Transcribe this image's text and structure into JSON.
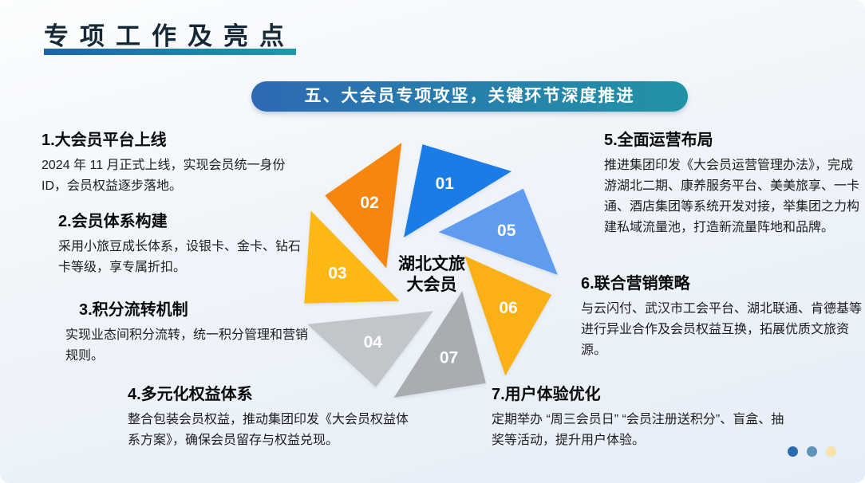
{
  "header": {
    "title": "专项工作及亮点",
    "banner": "五、大会员专项攻坚，关键环节深度推进"
  },
  "items": [
    {
      "heading": "1.大会员平台上线",
      "body": "2024 年 11 月正式上线，实现会员统一身份 ID，会员权益逐步落地。"
    },
    {
      "heading": "2.会员体系构建",
      "body": "采用小旅豆成长体系，设银卡、金卡、钻石卡等级，享专属折扣。"
    },
    {
      "heading": "3.积分流转机制",
      "body": "实现业态间积分流转，统一积分管理和营销规则。"
    },
    {
      "heading": "4.多元化权益体系",
      "body": "整合包装会员权益，推动集团印发《大会员权益体系方案》，确保会员留存与权益兑现。"
    },
    {
      "heading": "5.全面运营布局",
      "body": "推进集团印发《大会员运营管理办法》，完成游湖北二期、康养服务平台、美美旅享、一卡通、酒店集团等系统开发对接，举集团之力构建私域流量池，打造新流量阵地和品牌。"
    },
    {
      "heading": "6.联合营销策略",
      "body": "与云闪付、武汉市工会平台、湖北联通、肯德基等进行异业合作及会员权益互换，拓展优质文旅资源。"
    },
    {
      "heading": "7.用户体验优化",
      "body": "定期举办 “周三会员日” “会员注册送积分”、盲盒、抽奖等活动，提升用户体验。"
    }
  ],
  "diagram": {
    "center": {
      "line1": "湖北文旅",
      "line2": "大会员"
    },
    "segments": [
      {
        "label": "01",
        "color": "#1a7de7"
      },
      {
        "label": "05",
        "color": "#5f9cf0"
      },
      {
        "label": "06",
        "color": "#fbb116"
      },
      {
        "label": "07",
        "color": "#a9adb2"
      },
      {
        "label": "04",
        "color": "#c2c6ca"
      },
      {
        "label": "03",
        "color": "#fdb813"
      },
      {
        "label": "02",
        "color": "#f6860f"
      }
    ]
  },
  "colors": {
    "title_text": "#162836",
    "underline_start": "#1b64ac",
    "underline_end": "#2196ab",
    "banner_start": "#2d6ab3",
    "banner_end": "#2193a5"
  },
  "pagination": {
    "dots": [
      {
        "color": "#2a6cb3"
      },
      {
        "color": "#5e94ba"
      },
      {
        "color": "#f9e2a8"
      }
    ]
  }
}
